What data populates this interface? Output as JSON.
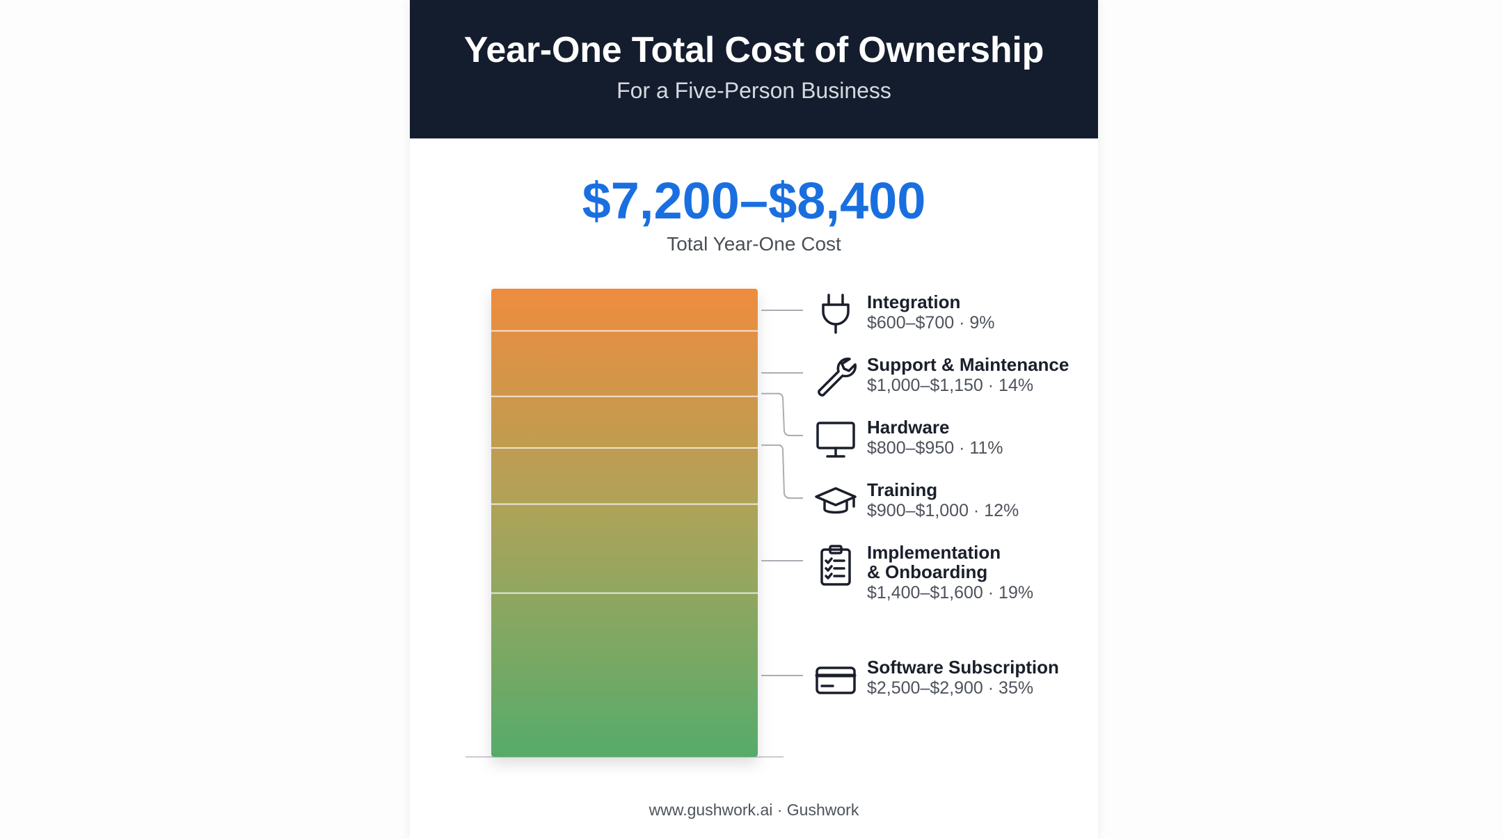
{
  "header": {
    "title": "Year-One Total Cost of Ownership",
    "subtitle": "For a Five-Person Business"
  },
  "total": {
    "value": "$7,200–$8,400",
    "label": "Total Year-One Cost"
  },
  "footer": "www.gushwork.ai · Gushwork",
  "colors": {
    "header_bg": "#141d2e",
    "accent_blue": "#1a6fe0",
    "bar_top": "#ef8c3e",
    "bar_bottom": "#56ab6b"
  },
  "chart_data": {
    "type": "bar",
    "stacked": true,
    "title": "Year-One Total Cost of Ownership",
    "subtitle": "For a Five-Person Business",
    "unit": "percent of total year-one cost",
    "segments": [
      {
        "name": "Integration",
        "range": "$600–$700",
        "percent": 9,
        "percent_label": "9%",
        "icon": "plug-icon"
      },
      {
        "name": "Support & Maintenance",
        "range": "$1,000–$1,150",
        "percent": 14,
        "percent_label": "14%",
        "icon": "wrench-icon"
      },
      {
        "name": "Hardware",
        "range": "$800–$950",
        "percent": 11,
        "percent_label": "11%",
        "icon": "monitor-icon"
      },
      {
        "name": "Training",
        "range": "$900–$1,000",
        "percent": 12,
        "percent_label": "12%",
        "icon": "graduation-cap-icon"
      },
      {
        "name": "Implementation & Onboarding",
        "name_lines": [
          "Implementation",
          "& Onboarding"
        ],
        "range": "$1,400–$1,600",
        "percent": 19,
        "percent_label": "19%",
        "icon": "clipboard-checklist-icon"
      },
      {
        "name": "Software Subscription",
        "range": "$2,500–$2,900",
        "percent": 35,
        "percent_label": "35%",
        "icon": "credit-card-icon"
      }
    ]
  }
}
